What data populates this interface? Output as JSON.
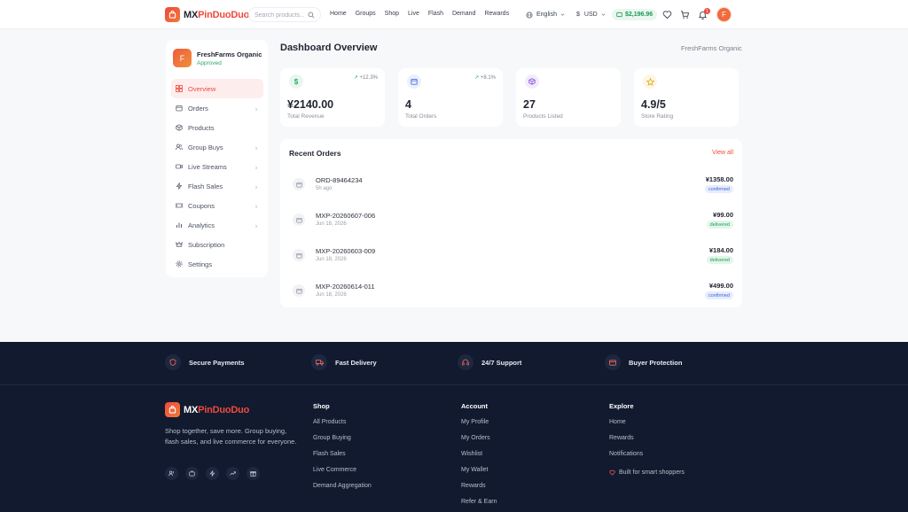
{
  "header": {
    "logo_prefix": "MX",
    "logo_suffix": "PinDuoDuo",
    "search_placeholder": "Search products...",
    "nav": [
      "Home",
      "Groups",
      "Shop",
      "Live",
      "Flash",
      "Demand",
      "Rewards"
    ],
    "language": "English",
    "currency": "USD",
    "wallet_balance": "$2,196.96",
    "notification_count": "1",
    "user_initial": "F"
  },
  "sidebar": {
    "store_initial": "F",
    "store_name": "FreshFarms Organic",
    "store_status": "Approved",
    "items": [
      {
        "label": "Overview",
        "icon": "grid-icon",
        "active": true,
        "chevron": false
      },
      {
        "label": "Orders",
        "icon": "box-icon",
        "active": false,
        "chevron": true
      },
      {
        "label": "Products",
        "icon": "package-icon",
        "active": false,
        "chevron": false
      },
      {
        "label": "Group Buys",
        "icon": "users-icon",
        "active": false,
        "chevron": true
      },
      {
        "label": "Live Streams",
        "icon": "video-icon",
        "active": false,
        "chevron": true
      },
      {
        "label": "Flash Sales",
        "icon": "bolt-icon",
        "active": false,
        "chevron": true
      },
      {
        "label": "Coupons",
        "icon": "ticket-icon",
        "active": false,
        "chevron": true
      },
      {
        "label": "Analytics",
        "icon": "chart-icon",
        "active": false,
        "chevron": true
      },
      {
        "label": "Subscription",
        "icon": "crown-icon",
        "active": false,
        "chevron": false
      },
      {
        "label": "Settings",
        "icon": "gear-icon",
        "active": false,
        "chevron": false
      }
    ]
  },
  "main": {
    "title": "Dashboard Overview",
    "store_name": "FreshFarms Organic",
    "stats": [
      {
        "value": "¥2140.00",
        "label": "Total Revenue",
        "change": "+12.3%",
        "icon": "dollar-icon",
        "color": "#22a862",
        "bg": "#e8f7ee"
      },
      {
        "value": "4",
        "label": "Total Orders",
        "change": "+8.1%",
        "icon": "calendar-icon",
        "color": "#4b6fe0",
        "bg": "#eaf0fd"
      },
      {
        "value": "27",
        "label": "Products Listed",
        "change": "",
        "icon": "cube-icon",
        "color": "#8a55e0",
        "bg": "#f1ebfc"
      },
      {
        "value": "4.9/5",
        "label": "Store Rating",
        "change": "",
        "icon": "star-icon",
        "color": "#e0a81e",
        "bg": "#fdf6e3"
      }
    ],
    "recent_orders": {
      "title": "Recent Orders",
      "view_all": "View all",
      "rows": [
        {
          "id": "ORD-89464234",
          "date": "5h ago",
          "amount": "¥1358.00",
          "status": "confirmed"
        },
        {
          "id": "MXP-20260607-006",
          "date": "Jun 18, 2026",
          "amount": "¥99.00",
          "status": "delivered"
        },
        {
          "id": "MXP-20260603-009",
          "date": "Jun 18, 2026",
          "amount": "¥184.00",
          "status": "delivered"
        },
        {
          "id": "MXP-20260614-011",
          "date": "Jun 18, 2026",
          "amount": "¥499.00",
          "status": "confirmed"
        }
      ]
    }
  },
  "footer": {
    "features": [
      {
        "label": "Secure Payments",
        "icon": "shield-icon"
      },
      {
        "label": "Fast Delivery",
        "icon": "truck-icon"
      },
      {
        "label": "24/7 Support",
        "icon": "headphones-icon"
      },
      {
        "label": "Buyer Protection",
        "icon": "card-icon"
      }
    ],
    "description": "Shop together, save more. Group buying, flash sales, and live commerce for everyone.",
    "columns": [
      {
        "title": "Shop",
        "links": [
          "All Products",
          "Group Buying",
          "Flash Sales",
          "Live Commerce",
          "Demand Aggregation"
        ]
      },
      {
        "title": "Account",
        "links": [
          "My Profile",
          "My Orders",
          "Wishlist",
          "My Wallet",
          "Rewards",
          "Refer & Earn"
        ]
      },
      {
        "title": "Explore",
        "links": [
          "Home",
          "Rewards",
          "Notifications"
        ]
      }
    ],
    "built_for": "Built for smart shoppers"
  }
}
